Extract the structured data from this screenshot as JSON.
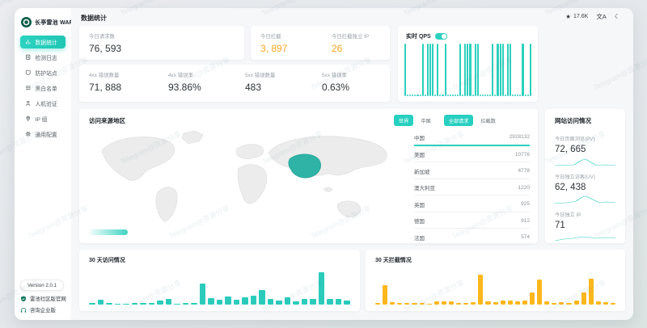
{
  "app": {
    "window_title": "长亭雷池 WAF",
    "page_title": "数据统计"
  },
  "header": {
    "star_count": "17.6K"
  },
  "sidebar": {
    "logo_text": "长亭雷池 WAF",
    "items": [
      {
        "label": "数据统计",
        "active": true
      },
      {
        "label": "检测日志",
        "active": false
      },
      {
        "label": "防护站点",
        "active": false
      },
      {
        "label": "黑白名单",
        "active": false
      },
      {
        "label": "人机验证",
        "active": false
      },
      {
        "label": "IP 组",
        "active": false
      },
      {
        "label": "通用配置",
        "active": false
      }
    ],
    "version": "Version 2.0.1",
    "links": [
      {
        "label": "雷池社区版官网"
      },
      {
        "label": "咨询企业版"
      }
    ]
  },
  "stats": {
    "requests": {
      "label": "今日请求数",
      "value": "76, 593"
    },
    "blocks": {
      "label": "今日拦截",
      "value": "3, 897"
    },
    "block_ips": {
      "label": "今日拦截独立 IP",
      "value": "26"
    },
    "err4xx_count": {
      "label": "4xx 错误数量",
      "value": "71, 888"
    },
    "err4xx_rate": {
      "label": "4xx 错误率",
      "value": "93.86%"
    },
    "err5xx_count": {
      "label": "5xx 错误数量",
      "value": "483"
    },
    "err5xx_rate": {
      "label": "5xx 错误率",
      "value": "0.63%"
    }
  },
  "qps": {
    "title": "实时 QPS"
  },
  "map": {
    "title": "访问来源地区",
    "region_tabs": [
      {
        "label": "世界",
        "active": true
      },
      {
        "label": "中国",
        "active": false
      }
    ],
    "metric_tabs": [
      {
        "label": "全部请求",
        "active": true
      },
      {
        "label": "拦截数",
        "active": false
      }
    ],
    "countries": [
      {
        "name": "中国",
        "value": "2928132"
      },
      {
        "name": "美国",
        "value": "10776"
      },
      {
        "name": "新加坡",
        "value": "4778"
      },
      {
        "name": "澳大利亚",
        "value": "1220"
      },
      {
        "name": "英国",
        "value": "925"
      },
      {
        "name": "德国",
        "value": "912"
      },
      {
        "name": "法国",
        "value": "574"
      }
    ]
  },
  "site": {
    "title": "网站访问情况",
    "items": [
      {
        "label": "今日页面浏览(PV)",
        "value": "72, 665"
      },
      {
        "label": "今日独立访客(UV)",
        "value": "62, 438"
      },
      {
        "label": "今日独立 IP",
        "value": "71"
      }
    ]
  },
  "bottom_charts": {
    "visits_title": "30 天访问情况",
    "blocks_title": "30 天拦截情况"
  },
  "colors": {
    "accent_teal": "#2bd0bd",
    "bar_teal": "#2bcbbc",
    "bar_yellow": "#fcb71d",
    "orange_value": "#f5a623",
    "logo_green": "#0d5c49"
  },
  "chart_data": {
    "qps": {
      "type": "bar",
      "title": "实时 QPS",
      "ylim": [
        0,
        100
      ],
      "color": "#2bd0bd",
      "values": [
        100,
        3,
        3,
        3,
        3,
        3,
        3,
        100,
        3,
        100,
        100,
        100,
        3,
        100,
        3,
        3,
        100,
        3,
        3,
        3,
        3,
        3,
        100,
        3,
        100,
        100,
        100,
        3,
        100,
        100,
        3,
        3,
        3,
        3,
        3,
        100,
        3,
        100,
        100,
        100,
        3,
        100,
        100,
        3,
        3,
        3,
        3,
        100,
        3,
        3,
        100
      ]
    },
    "visits_30d": {
      "type": "bar",
      "title": "30 天访问情况",
      "ylim": [
        0,
        100
      ],
      "color": "#2bcbbc",
      "values": [
        4,
        14,
        4,
        3,
        3,
        4,
        5,
        5,
        11,
        15,
        3,
        4,
        4,
        58,
        18,
        14,
        22,
        14,
        20,
        24,
        40,
        15,
        12,
        21,
        10,
        15,
        15,
        90,
        15,
        17,
        12
      ]
    },
    "blocks_30d": {
      "type": "bar",
      "title": "30 天拦截情况",
      "ylim": [
        0,
        100
      ],
      "color": "#fcb71d",
      "values": [
        4,
        55,
        7,
        4,
        4,
        4,
        4,
        3,
        9,
        9,
        9,
        5,
        5,
        7,
        85,
        9,
        7,
        11,
        11,
        9,
        11,
        33,
        70,
        9,
        5,
        7,
        4,
        11,
        33,
        72,
        9,
        7,
        4
      ]
    },
    "pv_spark": {
      "type": "line",
      "points": [
        [
          0,
          24
        ],
        [
          18,
          23
        ],
        [
          32,
          22
        ],
        [
          42,
          12
        ],
        [
          50,
          8
        ],
        [
          58,
          14
        ],
        [
          68,
          23
        ],
        [
          84,
          22
        ],
        [
          100,
          23
        ]
      ]
    },
    "uv_spark": {
      "type": "line",
      "points": [
        [
          0,
          23
        ],
        [
          20,
          22
        ],
        [
          35,
          18
        ],
        [
          45,
          8
        ],
        [
          52,
          6
        ],
        [
          60,
          12
        ],
        [
          72,
          21
        ],
        [
          86,
          20
        ],
        [
          100,
          21
        ]
      ]
    },
    "ip_spark": {
      "type": "line",
      "points": [
        [
          0,
          22
        ],
        [
          15,
          18
        ],
        [
          30,
          16
        ],
        [
          45,
          12
        ],
        [
          55,
          13
        ],
        [
          68,
          16
        ],
        [
          80,
          14
        ],
        [
          92,
          15
        ],
        [
          100,
          15
        ]
      ]
    }
  },
  "watermark": {
    "text": "Telegram@资源分享"
  }
}
